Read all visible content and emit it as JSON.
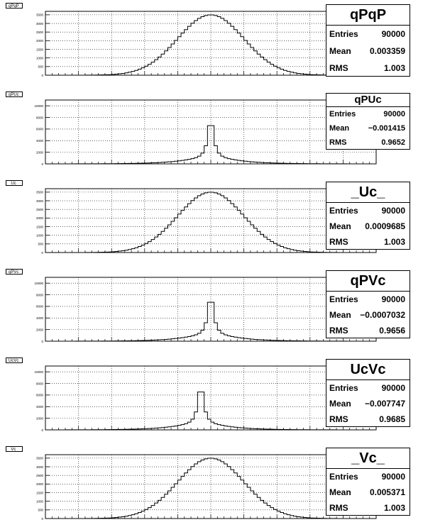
{
  "pads": [
    {
      "tag": "qPqP",
      "stats": {
        "title": "qPqP",
        "rows": [
          {
            "label": "Entries",
            "value": "90000"
          },
          {
            "label": "Mean",
            "value": "0.003359"
          },
          {
            "label": "RMS",
            "value": "1.003"
          }
        ]
      }
    },
    {
      "tag": "qPUc",
      "stats": {
        "title": "qPUc",
        "rows": [
          {
            "label": "Entries",
            "value": "90000"
          },
          {
            "label": "Mean",
            "value": "−0.001415"
          },
          {
            "label": "RMS",
            "value": "0.9652"
          }
        ]
      }
    },
    {
      "tag": "_Uc_",
      "stats": {
        "title": "_Uc_",
        "rows": [
          {
            "label": "Entries",
            "value": "90000"
          },
          {
            "label": "Mean",
            "value": "0.0009685"
          },
          {
            "label": "RMS",
            "value": "1.003"
          }
        ]
      }
    },
    {
      "tag": "qPVc",
      "stats": {
        "title": "qPVc",
        "rows": [
          {
            "label": "Entries",
            "value": "90000"
          },
          {
            "label": "Mean",
            "value": "−0.0007032"
          },
          {
            "label": "RMS",
            "value": "0.9656"
          }
        ]
      }
    },
    {
      "tag": "UcVc",
      "stats": {
        "title": "UcVc",
        "rows": [
          {
            "label": "Entries",
            "value": "90000"
          },
          {
            "label": "Mean",
            "value": "−0.007747"
          },
          {
            "label": "RMS",
            "value": "0.9685"
          }
        ]
      }
    },
    {
      "tag": "_Vc_",
      "stats": {
        "title": "_Vc_",
        "rows": [
          {
            "label": "Entries",
            "value": "90000"
          },
          {
            "label": "Mean",
            "value": "0.005371"
          },
          {
            "label": "RMS",
            "value": "1.003"
          }
        ]
      }
    }
  ],
  "chart_data": [
    {
      "type": "bar",
      "title": "qPqP",
      "shape": "gaussian",
      "bins": 100,
      "xlim": [
        -5,
        5
      ],
      "ylim": [
        0,
        3700
      ],
      "peak": 3500,
      "mean": 0.003359,
      "rms": 1.003,
      "entries": 90000,
      "grid": true,
      "yticks": [
        0,
        500,
        1000,
        1500,
        2000,
        2500,
        3000,
        3500
      ],
      "ytick_labels": [
        "0",
        "500",
        "1000",
        "1500",
        "2000",
        "2500",
        "3000",
        "3500"
      ]
    },
    {
      "type": "bar",
      "title": "qPUc",
      "shape": "peaked",
      "bins": 100,
      "xlim": [
        -5,
        5
      ],
      "ylim": [
        0,
        11000
      ],
      "peak": 10300,
      "mean": -0.001415,
      "rms": 0.9652,
      "entries": 90000,
      "grid": true,
      "yticks": [
        0,
        2000,
        4000,
        6000,
        8000,
        10000
      ],
      "ytick_labels": [
        "0",
        "2000",
        "4000",
        "6000",
        "8000",
        "10000"
      ]
    },
    {
      "type": "bar",
      "title": "_Uc_",
      "shape": "gaussian",
      "bins": 100,
      "xlim": [
        -5,
        5
      ],
      "ylim": [
        0,
        3700
      ],
      "peak": 3500,
      "mean": 0.0009685,
      "rms": 1.003,
      "entries": 90000,
      "grid": true,
      "yticks": [
        0,
        500,
        1000,
        1500,
        2000,
        2500,
        3000,
        3500
      ],
      "ytick_labels": [
        "0",
        "500",
        "1000",
        "1500",
        "2000",
        "2500",
        "3000",
        "3500"
      ]
    },
    {
      "type": "bar",
      "title": "qPVc",
      "shape": "peaked",
      "bins": 100,
      "xlim": [
        -5,
        5
      ],
      "ylim": [
        0,
        11000
      ],
      "peak": 10500,
      "mean": -0.0007032,
      "rms": 0.9656,
      "entries": 90000,
      "grid": true,
      "yticks": [
        0,
        2000,
        4000,
        6000,
        8000,
        10000
      ],
      "ytick_labels": [
        "0",
        "2000",
        "4000",
        "6000",
        "8000",
        "10000"
      ]
    },
    {
      "type": "bar",
      "title": "UcVc",
      "shape": "peaked",
      "bins": 100,
      "xlim": [
        -5,
        5
      ],
      "ylim": [
        0,
        11000
      ],
      "peak": 10200,
      "peak_x": -0.3,
      "mean": -0.007747,
      "rms": 0.9685,
      "entries": 90000,
      "grid": true,
      "yticks": [
        0,
        2000,
        4000,
        6000,
        8000,
        10000
      ],
      "ytick_labels": [
        "0",
        "2000",
        "4000",
        "6000",
        "8000",
        "10000"
      ]
    },
    {
      "type": "bar",
      "title": "_Vc_",
      "shape": "gaussian",
      "bins": 100,
      "xlim": [
        -5,
        5
      ],
      "ylim": [
        0,
        3700
      ],
      "peak": 3500,
      "mean": 0.005371,
      "rms": 1.003,
      "entries": 90000,
      "grid": true,
      "yticks": [
        0,
        500,
        1000,
        1500,
        2000,
        2500,
        3000,
        3500
      ],
      "ytick_labels": [
        "0",
        "500",
        "1000",
        "1500",
        "2000",
        "2500",
        "3000",
        "3500"
      ]
    }
  ]
}
